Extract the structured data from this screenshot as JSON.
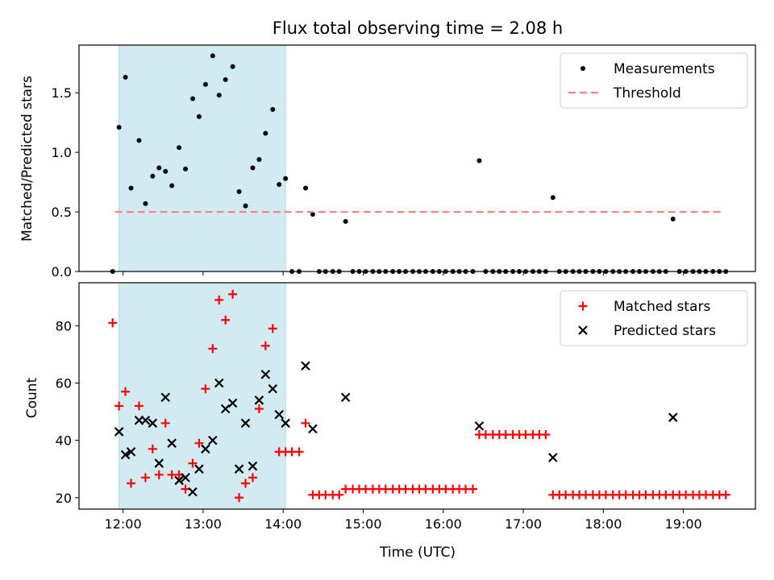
{
  "chart_data": [
    {
      "type": "scatter",
      "title": "Flux total observing time = 2.08 h",
      "ylabel": "Matched/Predicted stars",
      "xlabel": "",
      "xlim_hours": [
        11.45,
        19.9
      ],
      "ylim": [
        0,
        1.9
      ],
      "yticks": [
        0.0,
        0.5,
        1.0,
        1.5
      ],
      "ytick_labels": [
        "0.0",
        "0.5",
        "1.0",
        "1.5"
      ],
      "grid": false,
      "legend_position": "top-right",
      "shaded_interval_hours": [
        11.95,
        14.03
      ],
      "shade_color": "#add8e6",
      "series": [
        {
          "name": "Measurements",
          "marker": "dot",
          "color": "#000000",
          "x": [
            11.87,
            11.95,
            12.03,
            12.1,
            12.2,
            12.28,
            12.37,
            12.45,
            12.53,
            12.61,
            12.7,
            12.78,
            12.87,
            12.95,
            13.03,
            13.12,
            13.2,
            13.28,
            13.37,
            13.45,
            13.53,
            13.62,
            13.7,
            13.78,
            13.87,
            13.95,
            14.03,
            14.11,
            14.2,
            14.28,
            14.37,
            14.45,
            14.53,
            14.62,
            14.7,
            14.78,
            14.87,
            14.95,
            15.03,
            15.12,
            15.2,
            15.28,
            15.37,
            15.45,
            15.53,
            15.62,
            15.7,
            15.78,
            15.87,
            15.95,
            16.03,
            16.12,
            16.2,
            16.28,
            16.37,
            16.45,
            16.53,
            16.62,
            16.7,
            16.78,
            16.87,
            16.95,
            17.03,
            17.12,
            17.2,
            17.28,
            17.37,
            17.45,
            17.53,
            17.62,
            17.7,
            17.78,
            17.87,
            17.95,
            18.03,
            18.12,
            18.2,
            18.28,
            18.37,
            18.45,
            18.53,
            18.62,
            18.7,
            18.78,
            18.87,
            18.95,
            19.03,
            19.12,
            19.2,
            19.28,
            19.37,
            19.45,
            19.53
          ],
          "y": [
            0.0,
            1.21,
            1.63,
            0.7,
            1.1,
            0.57,
            0.8,
            0.87,
            0.84,
            0.72,
            1.04,
            0.86,
            1.45,
            1.3,
            1.57,
            1.81,
            1.48,
            1.61,
            1.72,
            0.67,
            0.55,
            0.87,
            0.94,
            1.16,
            1.36,
            0.73,
            0.78,
            0.0,
            0.0,
            0.7,
            0.48,
            0.0,
            0.0,
            0.0,
            0.0,
            0.42,
            0.0,
            0.0,
            0.0,
            0.0,
            0.0,
            0.0,
            0.0,
            0.0,
            0.0,
            0.0,
            0.0,
            0.0,
            0.0,
            0.0,
            0.0,
            0.0,
            0.0,
            0.0,
            0.0,
            0.93,
            0.0,
            0.0,
            0.0,
            0.0,
            0.0,
            0.0,
            0.0,
            0.0,
            0.0,
            0.0,
            0.62,
            0.0,
            0.0,
            0.0,
            0.0,
            0.0,
            0.0,
            0.0,
            0.0,
            0.0,
            0.0,
            0.0,
            0.0,
            0.0,
            0.0,
            0.0,
            0.0,
            0.0,
            0.44,
            0.0,
            0.0,
            0.0,
            0.0,
            0.0,
            0.0,
            0.0,
            0.0
          ]
        },
        {
          "name": "Threshold",
          "marker": "dashed-line",
          "color": "#ff7f7f",
          "x": [
            11.9,
            19.5
          ],
          "y": [
            0.5,
            0.5
          ]
        }
      ]
    },
    {
      "type": "scatter",
      "title": "",
      "ylabel": "Count",
      "xlabel": "Time (UTC)",
      "xlim_hours": [
        11.45,
        19.9
      ],
      "ylim": [
        16,
        95
      ],
      "yticks": [
        20,
        40,
        60,
        80
      ],
      "ytick_labels": [
        "20",
        "40",
        "60",
        "80"
      ],
      "xticks_hours": [
        12,
        13,
        14,
        15,
        16,
        17,
        18,
        19
      ],
      "xtick_labels": [
        "12:00",
        "13:00",
        "14:00",
        "15:00",
        "16:00",
        "17:00",
        "18:00",
        "19:00"
      ],
      "grid": false,
      "legend_position": "top-right",
      "shaded_interval_hours": [
        11.95,
        14.03
      ],
      "shade_color": "#add8e6",
      "series": [
        {
          "name": "Matched stars",
          "marker": "plus",
          "color": "#ff0000",
          "x": [
            11.87,
            11.95,
            12.03,
            12.1,
            12.2,
            12.28,
            12.37,
            12.45,
            12.53,
            12.61,
            12.7,
            12.78,
            12.87,
            12.95,
            13.03,
            13.12,
            13.2,
            13.28,
            13.37,
            13.45,
            13.53,
            13.62,
            13.7,
            13.78,
            13.87,
            13.95,
            14.03,
            14.11,
            14.2,
            14.28,
            14.37,
            14.45,
            14.53,
            14.62,
            14.7,
            14.78,
            14.87,
            14.95,
            15.03,
            15.12,
            15.2,
            15.28,
            15.37,
            15.45,
            15.53,
            15.62,
            15.7,
            15.78,
            15.87,
            15.95,
            16.03,
            16.12,
            16.2,
            16.28,
            16.37,
            16.45,
            16.53,
            16.62,
            16.7,
            16.78,
            16.87,
            16.95,
            17.03,
            17.12,
            17.2,
            17.28,
            17.37,
            17.45,
            17.53,
            17.62,
            17.7,
            17.78,
            17.87,
            17.95,
            18.03,
            18.12,
            18.2,
            18.28,
            18.37,
            18.45,
            18.53,
            18.62,
            18.7,
            18.78,
            18.87,
            18.95,
            19.03,
            19.12,
            19.2,
            19.28,
            19.37,
            19.45,
            19.53
          ],
          "y": [
            81,
            52,
            57,
            25,
            52,
            27,
            37,
            28,
            46,
            28,
            28,
            23,
            32,
            39,
            58,
            72,
            89,
            82,
            91,
            20,
            25,
            27,
            51,
            73,
            79,
            36,
            36,
            36,
            36,
            46,
            21,
            21,
            21,
            21,
            21,
            23,
            23,
            23,
            23,
            23,
            23,
            23,
            23,
            23,
            23,
            23,
            23,
            23,
            23,
            23,
            23,
            23,
            23,
            23,
            23,
            42,
            42,
            42,
            42,
            42,
            42,
            42,
            42,
            42,
            42,
            42,
            21,
            21,
            21,
            21,
            21,
            21,
            21,
            21,
            21,
            21,
            21,
            21,
            21,
            21,
            21,
            21,
            21,
            21,
            21,
            21,
            21,
            21,
            21,
            21,
            21,
            21,
            21
          ]
        },
        {
          "name": "Predicted stars",
          "marker": "x",
          "color": "#000000",
          "x": [
            11.95,
            12.03,
            12.1,
            12.2,
            12.28,
            12.37,
            12.45,
            12.53,
            12.61,
            12.7,
            12.78,
            12.87,
            12.95,
            13.03,
            13.12,
            13.2,
            13.28,
            13.37,
            13.45,
            13.53,
            13.62,
            13.7,
            13.78,
            13.87,
            13.95,
            14.03,
            14.28,
            14.37,
            14.78,
            16.45,
            17.37,
            18.87
          ],
          "y": [
            43,
            35,
            36,
            47,
            47,
            46,
            32,
            55,
            39,
            26,
            27,
            22,
            30,
            37,
            40,
            60,
            51,
            53,
            30,
            46,
            31,
            54,
            63,
            58,
            49,
            46,
            66,
            44,
            55,
            45,
            34,
            48
          ]
        }
      ]
    }
  ]
}
